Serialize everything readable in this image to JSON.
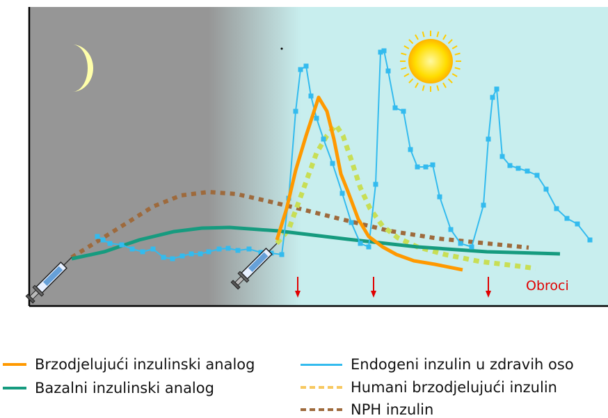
{
  "chart_data": {
    "type": "line",
    "title": "",
    "xlabel": "",
    "ylabel": "",
    "grid": false,
    "annotation": "Obroci",
    "colors": {
      "rapid_analog": "#ff9900",
      "basal_analog": "#169b7f",
      "endogenous": "#33bbee",
      "human_rapid": "#c8de55",
      "nph": "#9e6a3c",
      "meal_arrow": "#e00000",
      "night": "#969696",
      "day": "#c8eeee",
      "moon": "#ffffaa",
      "sun": "#ffdd00"
    },
    "icons": [
      "moon-icon",
      "sun-icon",
      "syringe-icon",
      "meal-arrow-icon"
    ],
    "series": [
      {
        "key": "rapid",
        "name": "Brzodjelujući inzulinski analog",
        "style": "solid",
        "x": [
          398,
          412,
          425,
          440,
          458,
          470,
          480,
          490,
          500,
          515,
          530,
          550,
          570,
          595,
          625,
          665
        ],
        "y": [
          345,
          300,
          245,
          195,
          140,
          160,
          200,
          250,
          275,
          315,
          340,
          355,
          366,
          375,
          380,
          388
        ]
      },
      {
        "key": "basal",
        "name": "Bazalni inzulinski analog",
        "style": "solid",
        "x": [
          103,
          150,
          200,
          250,
          290,
          330,
          400,
          500,
          600,
          700,
          805
        ],
        "y": [
          372,
          362,
          345,
          333,
          328,
          327,
          332,
          344,
          355,
          362,
          365
        ]
      },
      {
        "key": "endo",
        "name": "Endogeni inzulin u zdravih oso",
        "style": "solid-markers",
        "x": [
          140,
          148,
          158,
          175,
          190,
          205,
          220,
          235,
          248,
          262,
          275,
          288,
          300,
          315,
          328,
          342,
          358,
          375,
          390,
          405,
          415,
          425,
          432,
          440,
          447,
          455,
          465,
          478,
          492,
          505,
          518,
          530,
          540,
          547,
          552,
          558,
          568,
          580,
          590,
          600,
          612,
          622,
          632,
          648,
          662,
          678,
          695,
          702,
          708,
          714,
          722,
          733,
          745,
          758,
          772,
          785,
          800,
          815,
          830,
          848
        ],
        "y": [
          340,
          345,
          350,
          352,
          358,
          362,
          358,
          370,
          372,
          368,
          365,
          365,
          362,
          358,
          357,
          360,
          358,
          363,
          364,
          366,
          285,
          160,
          100,
          95,
          138,
          170,
          200,
          235,
          278,
          320,
          350,
          355,
          265,
          75,
          73,
          102,
          155,
          160,
          215,
          240,
          240,
          237,
          283,
          330,
          350,
          355,
          295,
          200,
          140,
          128,
          225,
          238,
          242,
          246,
          252,
          272,
          300,
          314,
          322,
          345
        ]
      },
      {
        "key": "human",
        "name": "Humani brzodjelujući inzulin",
        "style": "dashed",
        "x": [
          398,
          415,
          435,
          455,
          470,
          483,
          493,
          505,
          518,
          532,
          550,
          572,
          600,
          640,
          690,
          740,
          770
        ],
        "y": [
          350,
          330,
          275,
          220,
          195,
          180,
          195,
          230,
          270,
          300,
          325,
          342,
          355,
          366,
          376,
          382,
          386
        ]
      },
      {
        "key": "nph",
        "name": "NPH inzulin",
        "style": "dashed",
        "x": [
          103,
          140,
          180,
          220,
          260,
          300,
          340,
          380,
          430,
          490,
          560,
          630,
          700,
          760
        ],
        "y": [
          370,
          347,
          322,
          297,
          281,
          276,
          279,
          288,
          300,
          315,
          332,
          343,
          350,
          356
        ]
      }
    ],
    "meals_x": [
      428,
      537,
      702
    ]
  },
  "legend": {
    "rapid": "Brzodjelujući inzulinski analog",
    "basal": "Bazalni inzulinski analog",
    "endo": "Endogeni inzulin u zdravih oso",
    "human": "Humani brzodjelujući inzulin",
    "nph": "NPH inzulin"
  }
}
